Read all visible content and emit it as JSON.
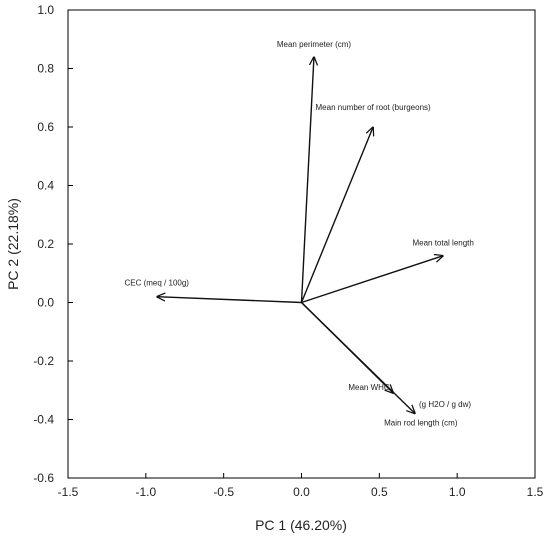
{
  "chart_data": {
    "type": "scatter",
    "subtype": "pca-biplot-loadings",
    "title": "",
    "xlabel": "PC 1 (46.20%)",
    "ylabel": "PC 2 (22.18%)",
    "xlim": [
      -1.5,
      1.5
    ],
    "ylim": [
      -0.6,
      1.0
    ],
    "x_ticks": [
      "-1.5",
      "-1.0",
      "-0.5",
      "0.0",
      "0.5",
      "1.0",
      "1.5"
    ],
    "y_ticks": [
      "-0.6",
      "-0.4",
      "-0.2",
      "0.0",
      "0.2",
      "0.4",
      "0.6",
      "0.8",
      "1.0"
    ],
    "grid": false,
    "origin": [
      0,
      0
    ],
    "vectors": [
      {
        "name": "Mean perimeter (cm)",
        "x": 0.08,
        "y": 0.84
      },
      {
        "name": "Mean number of root (burgeons)",
        "x": 0.46,
        "y": 0.6
      },
      {
        "name": "Mean total length",
        "x": 0.91,
        "y": 0.16
      },
      {
        "name": "CEC (meq / 100g)",
        "x": -0.93,
        "y": 0.02
      },
      {
        "name": "Mean WHC",
        "x": 0.59,
        "y": -0.31
      },
      {
        "name": "Main rod length (cm)",
        "x": 0.73,
        "y": -0.38
      }
    ],
    "annotations": [
      "(g H2O / g dw)"
    ]
  }
}
